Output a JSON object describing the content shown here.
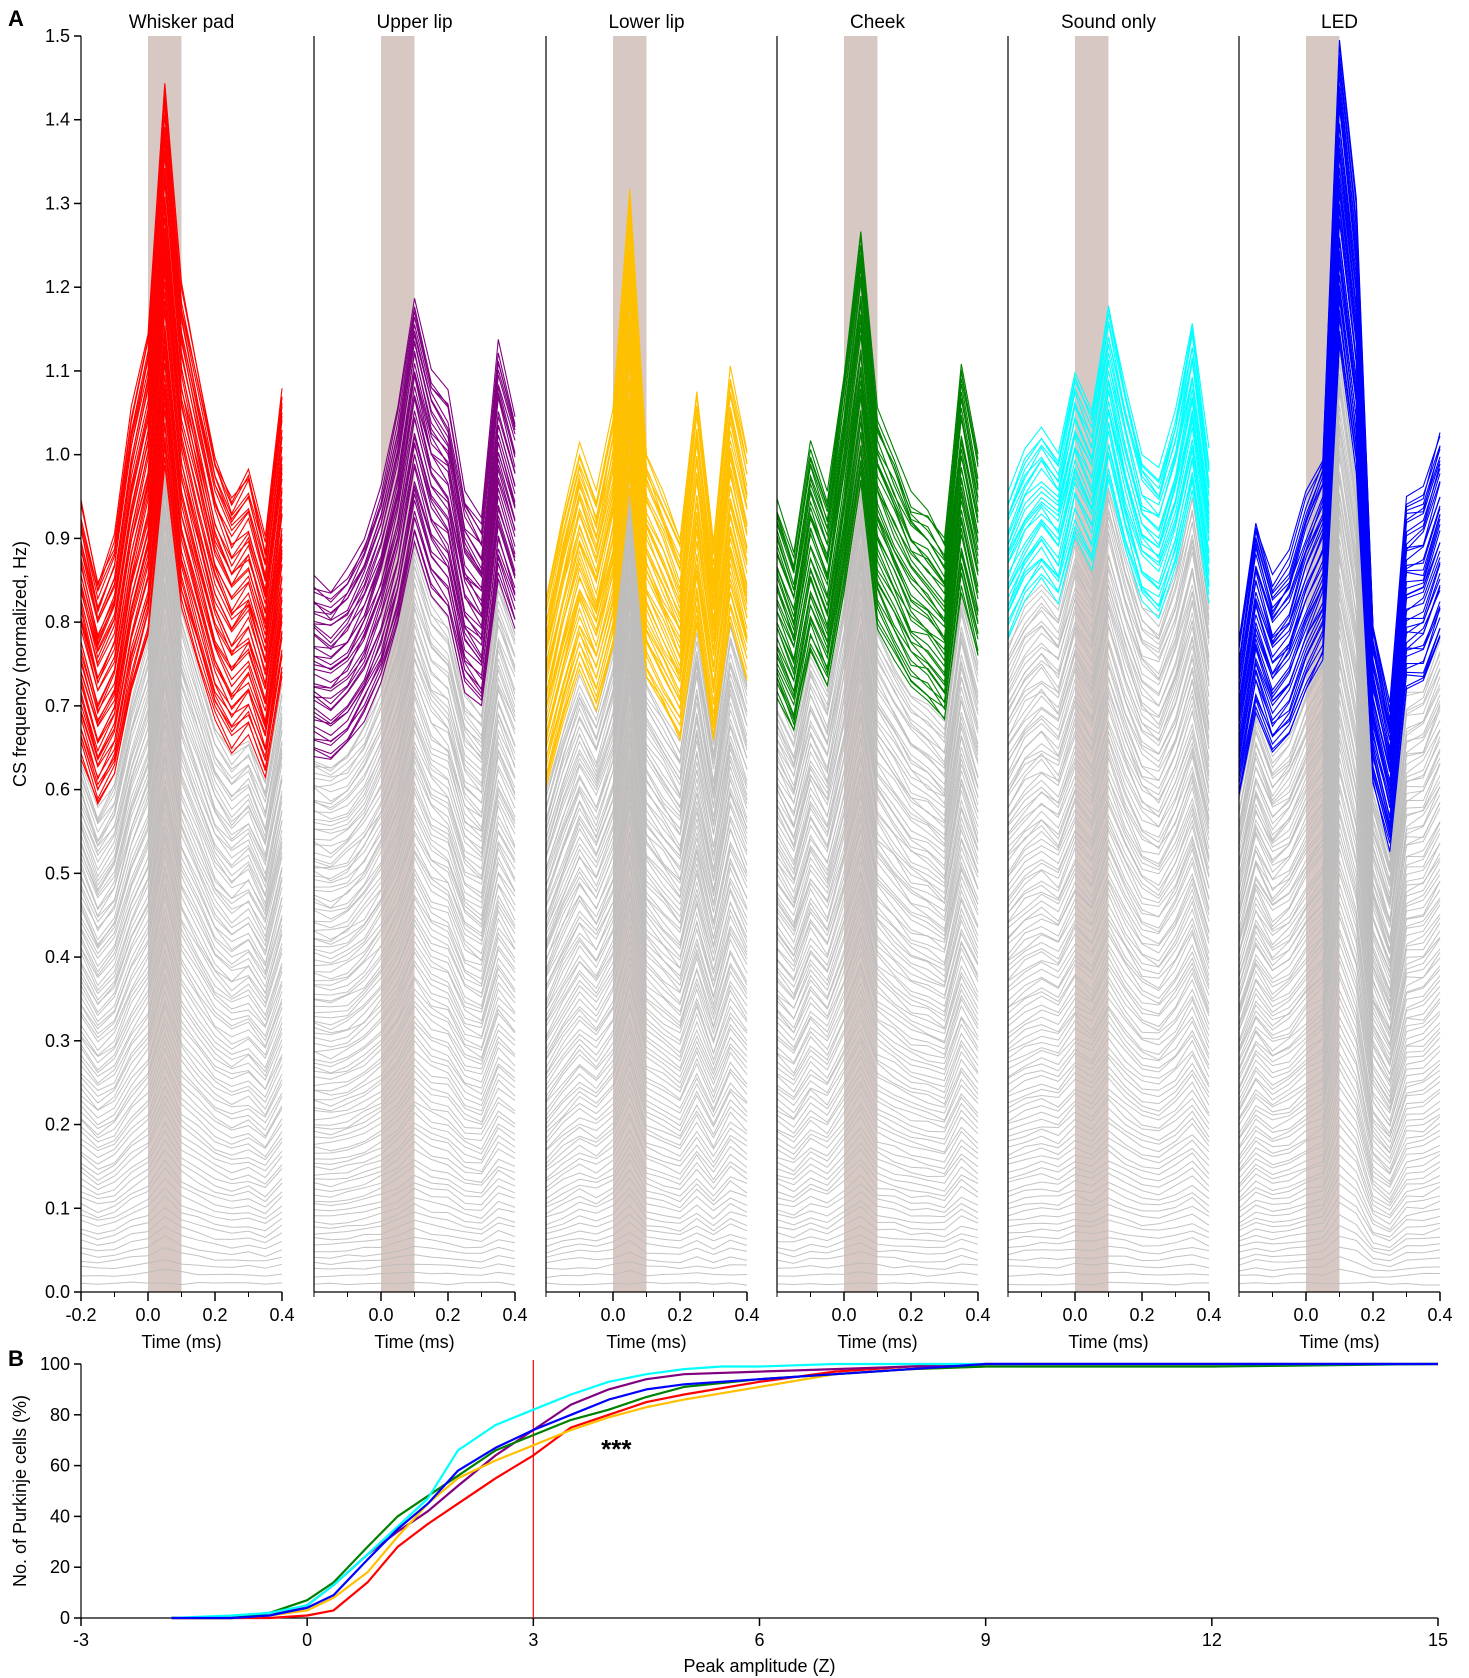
{
  "panel_labels": [
    "A",
    "B"
  ],
  "chart_data": [
    {
      "panel": "A",
      "type": "line",
      "ylabel": "CS frequency (normalized, Hz)",
      "ylim": [
        0,
        1.5
      ],
      "yticks": [
        "0.0",
        "0.1",
        "0.2",
        "0.3",
        "0.4",
        "0.5",
        "0.6",
        "0.7",
        "0.8",
        "0.9",
        "1.0",
        "1.1",
        "1.2",
        "1.3",
        "1.4",
        "1.5"
      ],
      "xlabel": "Time (ms)",
      "xlim": [
        -0.2,
        0.4
      ],
      "stim_window": [
        0.0,
        0.1
      ],
      "n_traces_per_panel": 150,
      "grey_color": "#bdbdbd",
      "stim_color": "#d8c8c4",
      "time_bins": [
        -0.2,
        -0.15,
        -0.1,
        -0.05,
        0.0,
        0.05,
        0.1,
        0.15,
        0.2,
        0.25,
        0.3,
        0.35,
        0.4
      ],
      "subplots": [
        {
          "title": "Whisker pad",
          "color": "#ff0000",
          "xticks": [
            "-0.2",
            "0.0",
            "0.2",
            "0.4"
          ],
          "colored_fraction": 0.35,
          "top_trace": [
            0.94,
            0.85,
            0.9,
            1.05,
            1.15,
            1.45,
            1.2,
            1.1,
            1.0,
            0.95,
            0.98,
            0.9,
            1.08
          ]
        },
        {
          "title": "Upper lip",
          "color": "#800080",
          "xticks": [
            "0.0",
            "0.2",
            "0.4"
          ],
          "colored_fraction": 0.27,
          "top_trace": [
            0.85,
            0.84,
            0.86,
            0.9,
            0.96,
            1.05,
            1.19,
            1.1,
            1.07,
            0.95,
            0.92,
            1.13,
            1.05
          ]
        },
        {
          "title": "Lower lip",
          "color": "#ffc000",
          "xticks": [
            "0.0",
            "0.2",
            "0.4"
          ],
          "colored_fraction": 0.3,
          "top_trace": [
            0.82,
            0.92,
            1.01,
            0.95,
            1.05,
            1.32,
            1.0,
            0.95,
            0.9,
            1.08,
            0.9,
            1.1,
            1.0
          ]
        },
        {
          "title": "Cheek",
          "color": "#008000",
          "xticks": [
            "0.0",
            "0.2",
            "0.4"
          ],
          "colored_fraction": 0.27,
          "top_trace": [
            0.94,
            0.88,
            1.01,
            0.95,
            1.1,
            1.27,
            1.05,
            1.0,
            0.95,
            0.93,
            0.9,
            1.11,
            1.0
          ]
        },
        {
          "title": "Sound only",
          "color": "#00ffff",
          "xticks": [
            "0.0",
            "0.2",
            "0.4"
          ],
          "colored_fraction": 0.2,
          "top_trace": [
            0.95,
            1.0,
            1.03,
            1.0,
            1.1,
            1.05,
            1.18,
            1.08,
            1.0,
            0.98,
            1.05,
            1.16,
            1.0
          ]
        },
        {
          "title": "LED",
          "color": "#0000ff",
          "xticks": [
            "0.0",
            "0.2",
            "0.4"
          ],
          "colored_fraction": 0.27,
          "top_trace": [
            0.78,
            0.92,
            0.85,
            0.88,
            0.95,
            1.0,
            1.5,
            1.3,
            0.8,
            0.7,
            0.95,
            0.96,
            1.03
          ]
        }
      ]
    },
    {
      "panel": "B",
      "type": "line",
      "xlabel": "Peak amplitude (Z)",
      "ylabel": "No. of Purkinje cells (%)",
      "xlim": [
        -3,
        15
      ],
      "ylim": [
        0,
        100
      ],
      "xticks": [
        "-3",
        "0",
        "3",
        "6",
        "9",
        "12",
        "15"
      ],
      "yticks": [
        "0",
        "20",
        "40",
        "60",
        "80",
        "100"
      ],
      "threshold_x": 3,
      "threshold_color": "#ff0000",
      "annotation": "***",
      "series": [
        {
          "color": "#ff0000",
          "x": [
            -1.8,
            -1,
            -0.5,
            0,
            0.35,
            0.8,
            1.2,
            1.6,
            2,
            2.5,
            3,
            3.5,
            4,
            4.5,
            5,
            6,
            7,
            8,
            9,
            15
          ],
          "y": [
            0,
            0,
            0,
            1,
            3,
            14,
            28,
            37,
            45,
            55,
            64,
            75,
            80,
            85,
            88,
            93,
            97,
            99,
            100,
            100
          ]
        },
        {
          "color": "#800080",
          "x": [
            -1.8,
            -1,
            -0.5,
            0,
            0.35,
            0.8,
            1.2,
            1.6,
            2,
            2.5,
            3,
            3.5,
            4,
            4.5,
            5,
            6,
            7,
            8,
            9,
            15
          ],
          "y": [
            0,
            0,
            1,
            5,
            13,
            25,
            34,
            42,
            52,
            64,
            74,
            84,
            90,
            94,
            96,
            97,
            98,
            99,
            100,
            100
          ]
        },
        {
          "color": "#ffc000",
          "x": [
            -1.8,
            -1,
            -0.5,
            0,
            0.35,
            0.8,
            1.2,
            1.6,
            2,
            2.5,
            3,
            3.5,
            4,
            4.5,
            5,
            6,
            7,
            8,
            9,
            15
          ],
          "y": [
            0,
            0,
            1,
            3,
            8,
            18,
            32,
            45,
            55,
            62,
            68,
            74,
            79,
            83,
            86,
            91,
            96,
            98,
            99,
            100
          ]
        },
        {
          "color": "#008000",
          "x": [
            -1.8,
            -1,
            -0.5,
            0,
            0.35,
            0.8,
            1.2,
            1.6,
            2,
            2.5,
            3,
            3.5,
            4,
            4.5,
            5,
            6,
            7,
            8,
            9,
            12,
            15
          ],
          "y": [
            0,
            0,
            2,
            7,
            14,
            28,
            40,
            48,
            56,
            66,
            72,
            78,
            82,
            87,
            91,
            94,
            96,
            98,
            99,
            99,
            100
          ]
        },
        {
          "color": "#00ffff",
          "x": [
            -1.8,
            -1,
            -0.5,
            0,
            0.35,
            0.8,
            1.2,
            1.6,
            2,
            2.5,
            3,
            3.5,
            4,
            4.5,
            5,
            5.5,
            6,
            7,
            8,
            9,
            15
          ],
          "y": [
            0,
            1,
            2,
            5,
            13,
            25,
            36,
            47,
            66,
            76,
            82,
            88,
            93,
            96,
            98,
            99,
            99,
            100,
            100,
            100,
            100
          ]
        },
        {
          "color": "#0000ff",
          "x": [
            -1.8,
            -1,
            -0.5,
            0,
            0.35,
            0.8,
            1.2,
            1.6,
            2,
            2.5,
            3,
            3.5,
            4,
            4.5,
            5,
            6,
            7,
            8,
            9,
            15
          ],
          "y": [
            0,
            0,
            1,
            4,
            9,
            23,
            35,
            45,
            58,
            67,
            74,
            80,
            86,
            90,
            92,
            94,
            96,
            98,
            100,
            100
          ]
        }
      ]
    }
  ]
}
